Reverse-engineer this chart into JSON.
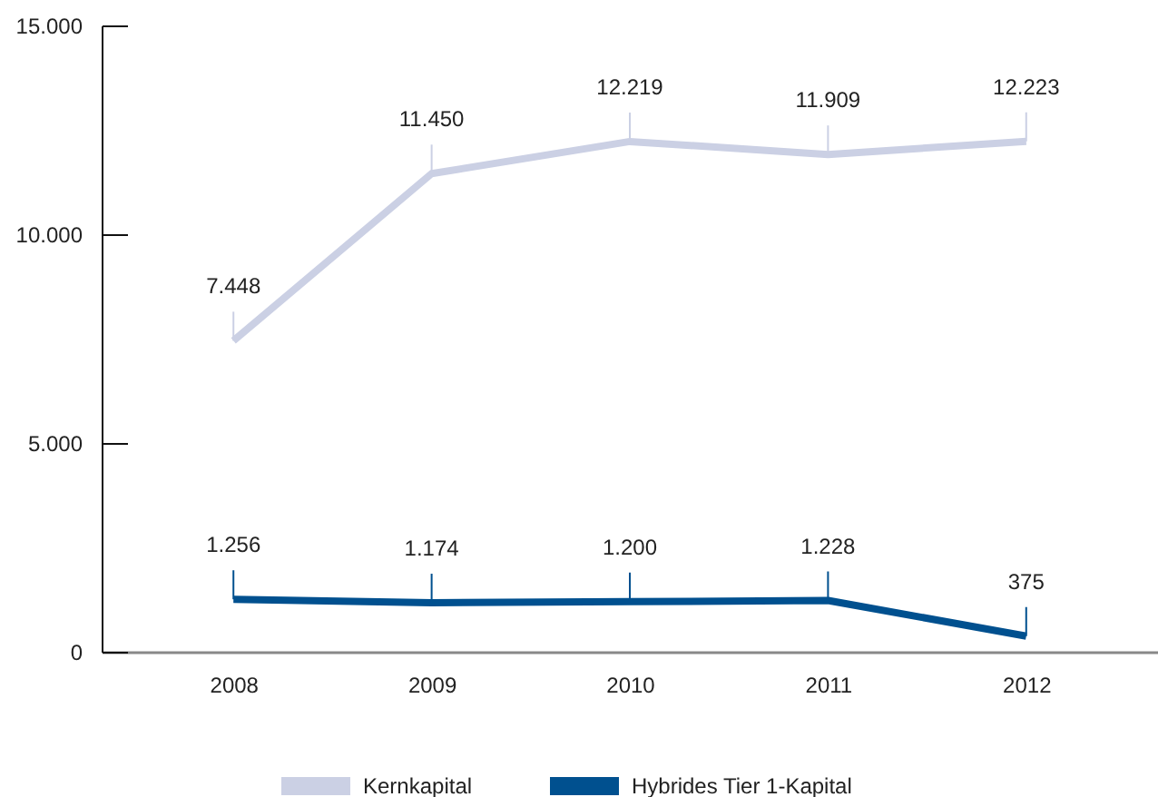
{
  "chart_data": {
    "type": "line",
    "categories": [
      "2008",
      "2009",
      "2010",
      "2011",
      "2012"
    ],
    "series": [
      {
        "name": "Kernkapital",
        "color": "#cbd0e4",
        "values": [
          7448,
          11450,
          12219,
          11909,
          12223
        ],
        "value_labels": [
          "7.448",
          "11.450",
          "12.219",
          "11.909",
          "12.223"
        ]
      },
      {
        "name": "Hybrides Tier 1-Kapital",
        "color": "#00508f",
        "values": [
          1256,
          1174,
          1200,
          1228,
          375
        ],
        "value_labels": [
          "1.256",
          "1.174",
          "1.200",
          "1.228",
          "375"
        ]
      }
    ],
    "ylim": [
      0,
      15000
    ],
    "yticks": [
      0,
      {
        "value": 5000,
        "label": "5.000"
      },
      {
        "value": 10000,
        "label": "10.000"
      },
      {
        "value": 15000,
        "label": "15.000"
      }
    ],
    "grid": false,
    "legend": "bottom",
    "marker": "none",
    "line_style": "solid"
  }
}
